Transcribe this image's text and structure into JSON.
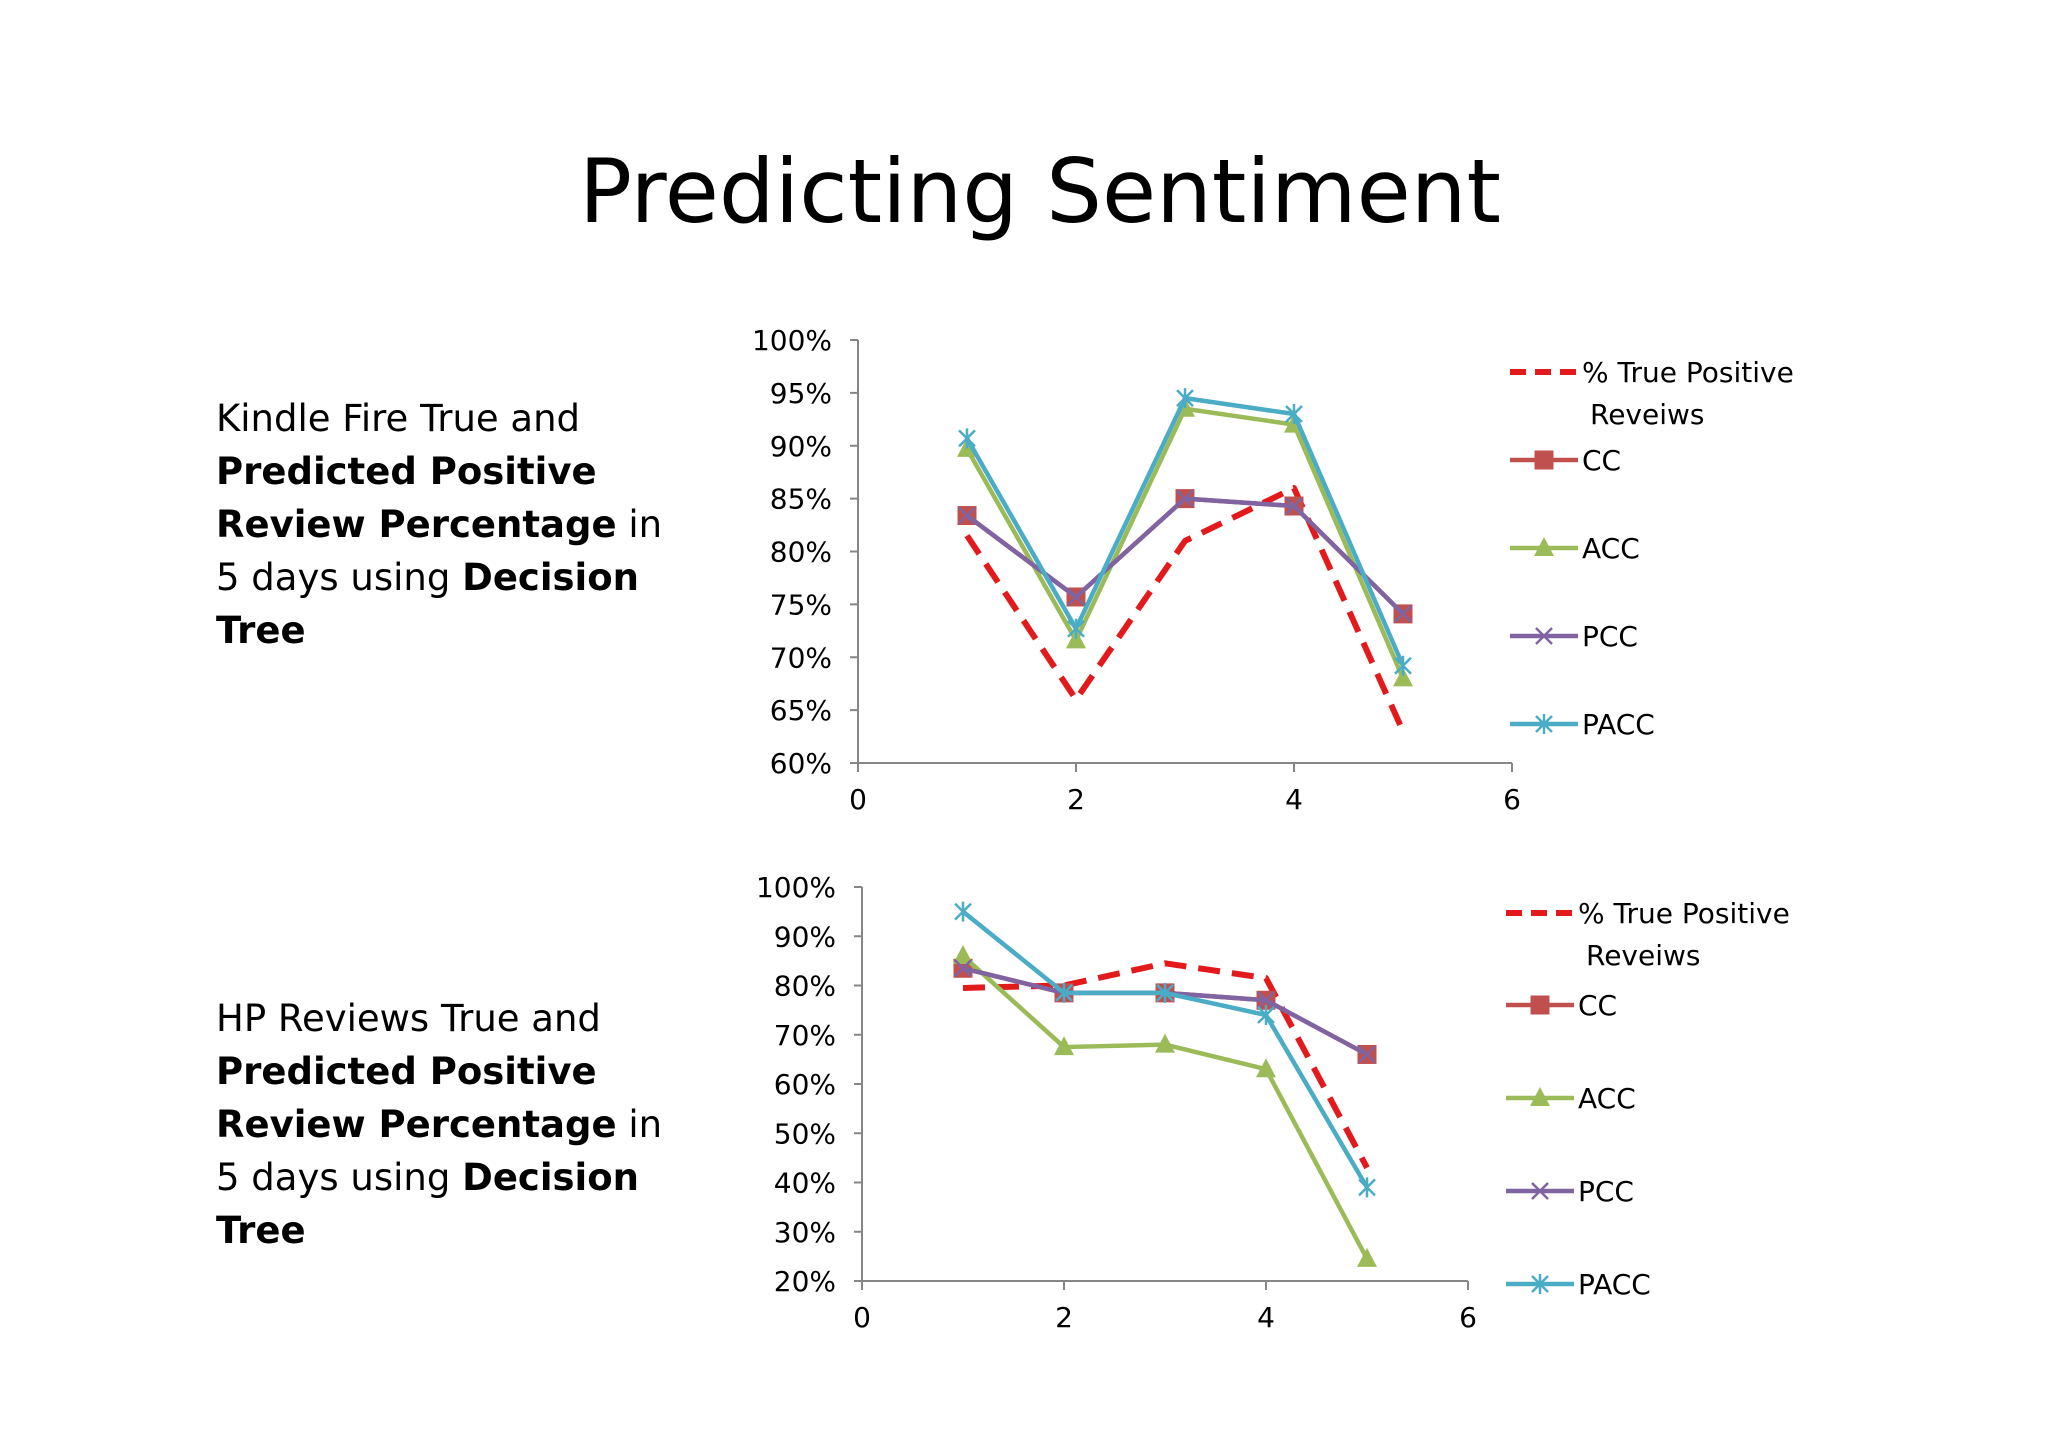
{
  "slide": {
    "title": "Predicting Sentiment"
  },
  "descriptions": [
    {
      "pre": "Kindle Fire True and ",
      "bold1": "Predicted Positive Review Percentage",
      "mid": " in 5 days using ",
      "bold2": "Decision Tree"
    },
    {
      "pre": "HP Reviews True and ",
      "bold1": "Predicted Positive Review Percentage",
      "mid": " in 5 days using ",
      "bold2": "Decision Tree"
    }
  ],
  "colors": {
    "true_positive": "#e31a1c",
    "CC": "#c0504d",
    "ACC": "#9bbb59",
    "PCC": "#8064a2",
    "PACC": "#4bacc6"
  },
  "chart_data": [
    {
      "type": "line",
      "x": [
        1,
        2,
        3,
        4,
        5
      ],
      "xlim": [
        0,
        6
      ],
      "xticks": [
        "0",
        "2",
        "4",
        "6"
      ],
      "ylim": [
        0.6,
        1.0
      ],
      "yticks": [
        "60%",
        "65%",
        "70%",
        "75%",
        "80%",
        "85%",
        "90%",
        "95%",
        "100%"
      ],
      "legend_position": "right",
      "series": [
        {
          "name": "% True Positive Reveiws",
          "key": "true_positive",
          "style": "dashed",
          "marker": "none",
          "values": [
            0.815,
            0.66,
            0.81,
            0.86,
            0.63
          ]
        },
        {
          "name": "CC",
          "key": "CC",
          "style": "solid",
          "marker": "square",
          "values": [
            0.834,
            0.757,
            0.85,
            0.843,
            0.741
          ]
        },
        {
          "name": "ACC",
          "key": "ACC",
          "style": "solid",
          "marker": "triangle",
          "values": [
            0.897,
            0.716,
            0.935,
            0.92,
            0.68
          ]
        },
        {
          "name": "PCC",
          "key": "PCC",
          "style": "solid",
          "marker": "x",
          "values": [
            0.834,
            0.757,
            0.85,
            0.843,
            0.741
          ]
        },
        {
          "name": "PACC",
          "key": "PACC",
          "style": "solid",
          "marker": "star",
          "values": [
            0.907,
            0.727,
            0.945,
            0.93,
            0.692
          ]
        }
      ]
    },
    {
      "type": "line",
      "x": [
        1,
        2,
        3,
        4,
        5
      ],
      "xlim": [
        0,
        6
      ],
      "xticks": [
        "0",
        "2",
        "4",
        "6"
      ],
      "ylim": [
        0.2,
        1.0
      ],
      "yticks": [
        "20%",
        "30%",
        "40%",
        "50%",
        "60%",
        "70%",
        "80%",
        "90%",
        "100%"
      ],
      "legend_position": "right",
      "series": [
        {
          "name": "% True Positive Reveiws",
          "key": "true_positive",
          "style": "dashed",
          "marker": "none",
          "values": [
            0.795,
            0.8,
            0.845,
            0.815,
            0.43
          ]
        },
        {
          "name": "CC",
          "key": "CC",
          "style": "solid",
          "marker": "square",
          "values": [
            0.835,
            0.785,
            0.785,
            0.77,
            0.66
          ]
        },
        {
          "name": "ACC",
          "key": "ACC",
          "style": "solid",
          "marker": "triangle",
          "values": [
            0.86,
            0.675,
            0.68,
            0.63,
            0.245
          ]
        },
        {
          "name": "PCC",
          "key": "PCC",
          "style": "solid",
          "marker": "x",
          "values": [
            0.835,
            0.785,
            0.785,
            0.77,
            0.66
          ]
        },
        {
          "name": "PACC",
          "key": "PACC",
          "style": "solid",
          "marker": "star",
          "values": [
            0.95,
            0.785,
            0.785,
            0.74,
            0.39
          ]
        }
      ]
    }
  ]
}
